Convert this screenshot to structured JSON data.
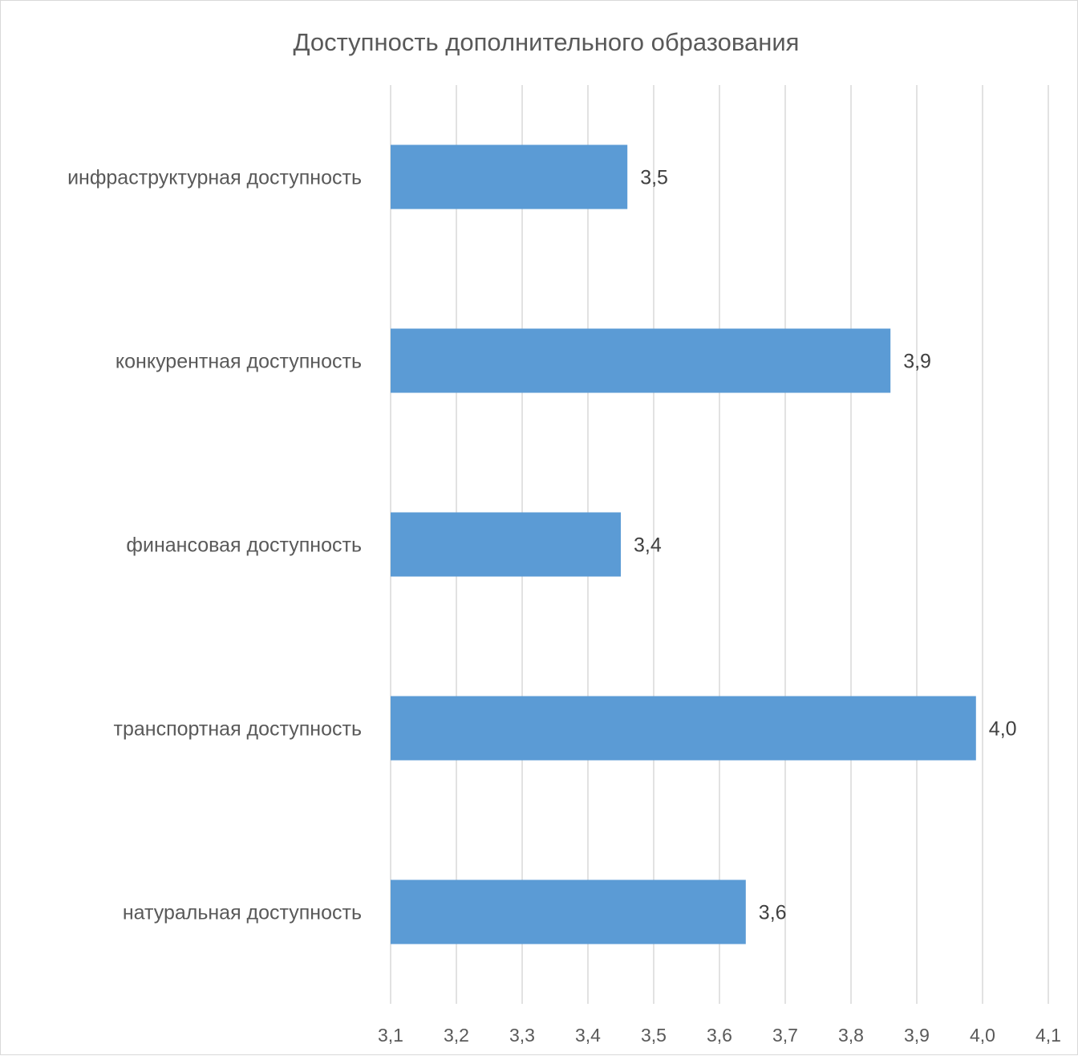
{
  "chart_data": {
    "type": "bar",
    "orientation": "horizontal",
    "title": "Доступность дополнительного образования",
    "xlabel": "",
    "ylabel": "",
    "categories": [
      "инфраструктурная доступность",
      "конкурентная доступность",
      "финансовая доступность",
      "транспортная доступность",
      "натуральная доступность"
    ],
    "values": [
      3.46,
      3.86,
      3.45,
      3.99,
      3.64
    ],
    "data_labels": [
      "3,5",
      "3,9",
      "3,4",
      "4,0",
      "3,6"
    ],
    "xlim": [
      3.1,
      4.1
    ],
    "x_ticks": [
      "3,1",
      "3,2",
      "3,3",
      "3,4",
      "3,5",
      "3,6",
      "3,7",
      "3,8",
      "3,9",
      "4,0",
      "4,1"
    ],
    "grid": true,
    "legend": "none",
    "bar_color": "#5b9bd5"
  }
}
